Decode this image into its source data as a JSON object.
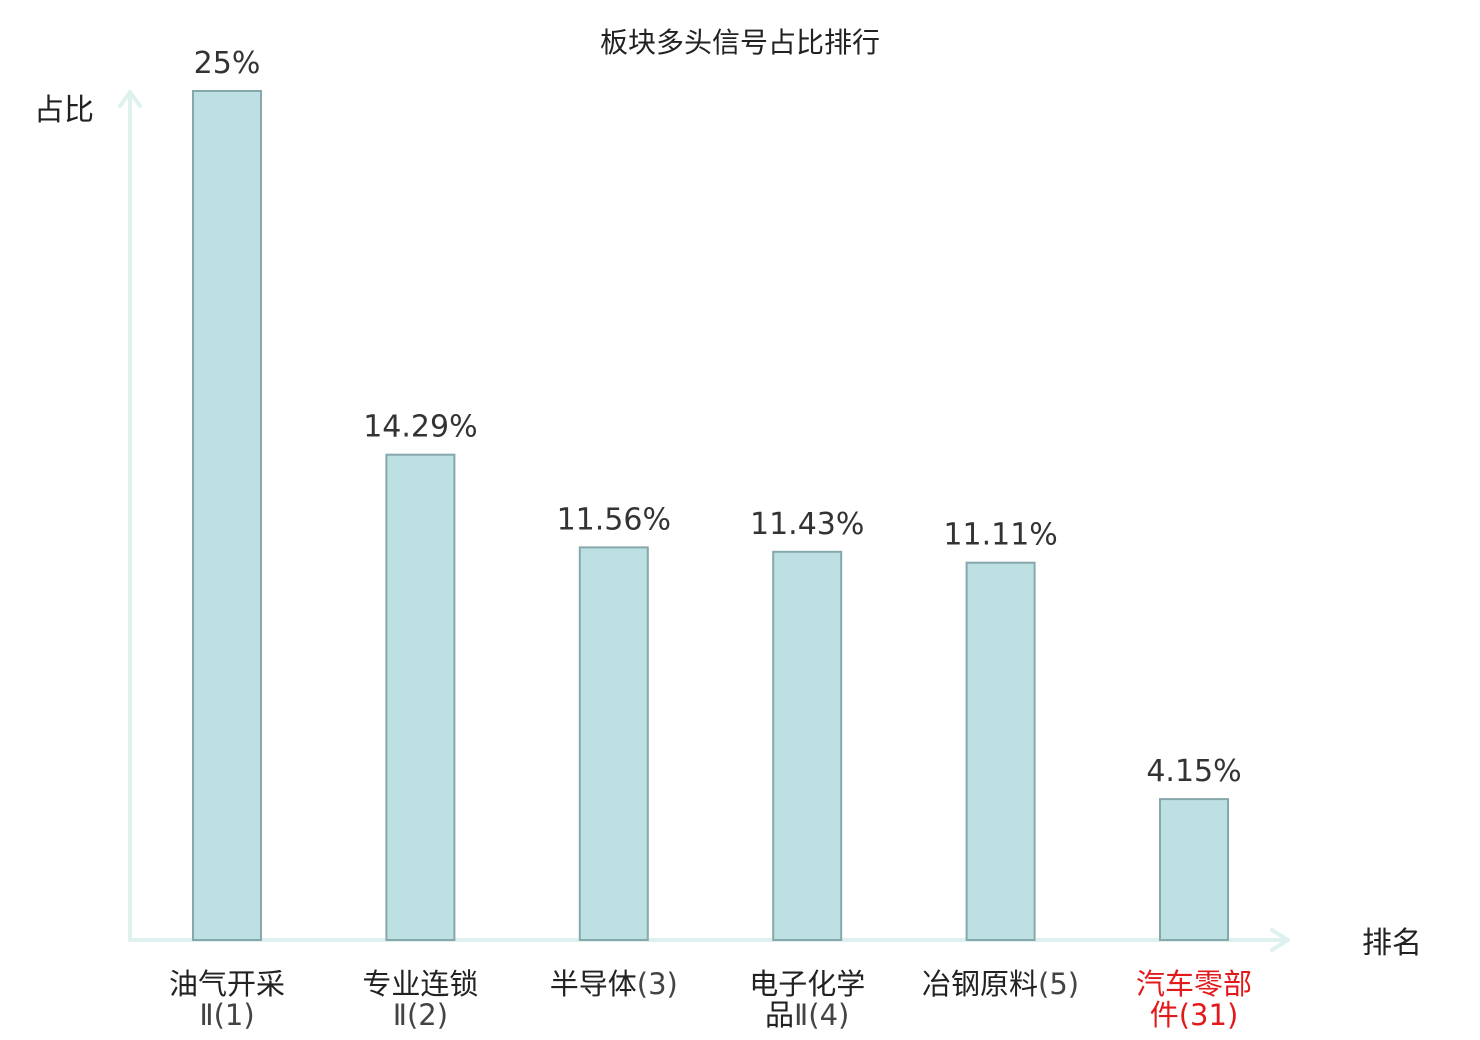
{
  "chart_data": {
    "type": "bar",
    "title": "板块多头信号占比排行",
    "xlabel": "排名",
    "ylabel": "占比",
    "ylim": [
      0,
      25
    ],
    "grid": false,
    "categories": [
      {
        "line1": "油气开采",
        "line2": "Ⅱ(1)"
      },
      {
        "line1": "专业连锁",
        "line2": "Ⅱ(2)"
      },
      {
        "line1": "半导体(3)",
        "line2": ""
      },
      {
        "line1": "电子化学",
        "line2": "品Ⅱ(4)"
      },
      {
        "line1": "冶钢原料(5)",
        "line2": ""
      },
      {
        "line1": "汽车零部",
        "line2": "件(31)"
      }
    ],
    "values": [
      25,
      14.29,
      11.56,
      11.43,
      11.11,
      4.15
    ],
    "value_labels": [
      "25%",
      "14.29%",
      "11.56%",
      "11.43%",
      "11.11%",
      "4.15%"
    ],
    "highlight_index": 5,
    "colors": {
      "bar_fill": "#bde0e3",
      "bar_stroke": "#86a8ab",
      "axis": "#dff1ee",
      "highlight_text": "#e31a1c"
    }
  }
}
